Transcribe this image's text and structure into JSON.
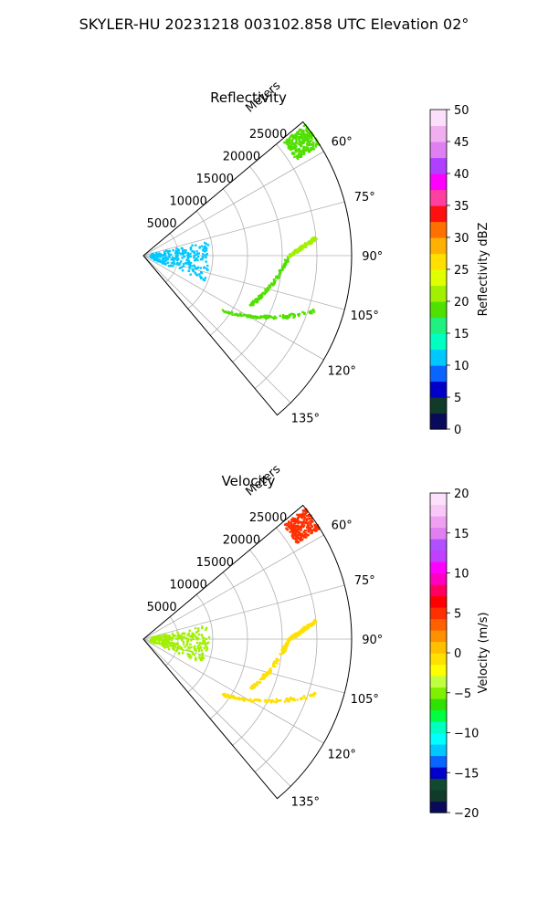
{
  "suptitle": "SKYLER-HU  20231218  003102.858 UTC Elevation 02°",
  "chart_data": [
    {
      "type": "polar-sector",
      "title": "Reflectivity",
      "radial_label": "Meters",
      "r_ticks": [
        "5000",
        "10000",
        "15000",
        "20000",
        "25000"
      ],
      "r_tick_values": [
        5000,
        10000,
        15000,
        20000,
        25000
      ],
      "rlim": [
        0,
        30000
      ],
      "theta_ticks": [
        "60°",
        "75°",
        "90°",
        "105°",
        "120°",
        "135°"
      ],
      "theta_tick_values": [
        60,
        75,
        90,
        105,
        120,
        135
      ],
      "thetalim": [
        50,
        140
      ],
      "grid": true,
      "colorbar": {
        "label": "Reflectivity dBZ",
        "min": 0,
        "max": 50,
        "ticks": [
          "0",
          "5",
          "10",
          "15",
          "20",
          "25",
          "30",
          "35",
          "40",
          "45",
          "50"
        ],
        "tick_values": [
          0,
          5,
          10,
          15,
          20,
          25,
          30,
          35,
          40,
          45,
          50
        ],
        "colors": [
          "#0a0a5a",
          "#103a2a",
          "#0000c8",
          "#0a64ff",
          "#00c8ff",
          "#00ffc0",
          "#20f080",
          "#50e000",
          "#a0f000",
          "#e0ff00",
          "#ffe000",
          "#ffb000",
          "#ff7000",
          "#ff1010",
          "#ff40a0",
          "#ff00ff",
          "#b040ff",
          "#e080f0",
          "#f0b0f0",
          "#fbe0fb"
        ]
      },
      "echo_features": [
        {
          "name": "near-cluster",
          "color": "#00c8ff",
          "range_m": [
            1000,
            9500
          ],
          "azimuth_deg": [
            78,
            112
          ],
          "level_dbz": 10
        },
        {
          "name": "north-edge",
          "color": "#50e000",
          "range_m": [
            26000,
            30000
          ],
          "azimuth_deg": [
            51,
            58
          ],
          "level_dbz": 20
        },
        {
          "name": "line-1",
          "color": "#50e000",
          "range_m": [
            14000,
            26000
          ],
          "azimuth_deg": [
            125,
            108
          ],
          "level_dbz": 20
        },
        {
          "name": "line-2",
          "color": "#50e000",
          "range_m": [
            17000,
            21000
          ],
          "azimuth_deg": [
            115,
            90
          ],
          "level_dbz": 20
        },
        {
          "name": "line-3",
          "color": "#a0f000",
          "range_m": [
            21000,
            25000
          ],
          "azimuth_deg": [
            90,
            84
          ],
          "level_dbz": 25
        }
      ]
    },
    {
      "type": "polar-sector",
      "title": "Velocity",
      "radial_label": "Meters",
      "r_ticks": [
        "5000",
        "10000",
        "15000",
        "20000",
        "25000"
      ],
      "r_tick_values": [
        5000,
        10000,
        15000,
        20000,
        25000
      ],
      "rlim": [
        0,
        30000
      ],
      "theta_ticks": [
        "60°",
        "75°",
        "90°",
        "105°",
        "120°",
        "135°"
      ],
      "theta_tick_values": [
        60,
        75,
        90,
        105,
        120,
        135
      ],
      "thetalim": [
        50,
        140
      ],
      "grid": true,
      "colorbar": {
        "label": "Velocity (m/s)",
        "min": -20,
        "max": 20,
        "ticks": [
          "−20",
          "−15",
          "−10",
          "−5",
          "0",
          "5",
          "10",
          "15",
          "20"
        ],
        "tick_values": [
          -20,
          -15,
          -10,
          -5,
          0,
          5,
          10,
          15,
          20
        ],
        "colors": [
          "#0a0a5a",
          "#103a2a",
          "#104a30",
          "#0000c8",
          "#0a64ff",
          "#00c8ff",
          "#00ffff",
          "#00ffc0",
          "#00ff40",
          "#30e000",
          "#80f000",
          "#c0ff40",
          "#ffff00",
          "#ffe000",
          "#ffc000",
          "#ff9000",
          "#ff6000",
          "#ff3000",
          "#ff0000",
          "#ff0060",
          "#ff00c0",
          "#ff00ff",
          "#c040ff",
          "#b050ff",
          "#e080f0",
          "#f0a0f0",
          "#f8c8f8",
          "#fce0fc"
        ]
      },
      "echo_features": [
        {
          "name": "near-cluster",
          "color": "#a0f000",
          "range_m": [
            1000,
            9500
          ],
          "azimuth_deg": [
            78,
            112
          ],
          "level_ms": -2
        },
        {
          "name": "north-edge",
          "color": "#ff3000",
          "range_m": [
            26000,
            30000
          ],
          "azimuth_deg": [
            51,
            58
          ],
          "level_ms": 10
        },
        {
          "name": "line-1",
          "color": "#ffe000",
          "range_m": [
            14000,
            26000
          ],
          "azimuth_deg": [
            125,
            108
          ],
          "level_ms": 2
        },
        {
          "name": "line-2",
          "color": "#ffe000",
          "range_m": [
            17000,
            21000
          ],
          "azimuth_deg": [
            115,
            90
          ],
          "level_ms": 2
        },
        {
          "name": "line-3",
          "color": "#ffe000",
          "range_m": [
            21000,
            25000
          ],
          "azimuth_deg": [
            90,
            84
          ],
          "level_ms": 3
        }
      ]
    }
  ]
}
